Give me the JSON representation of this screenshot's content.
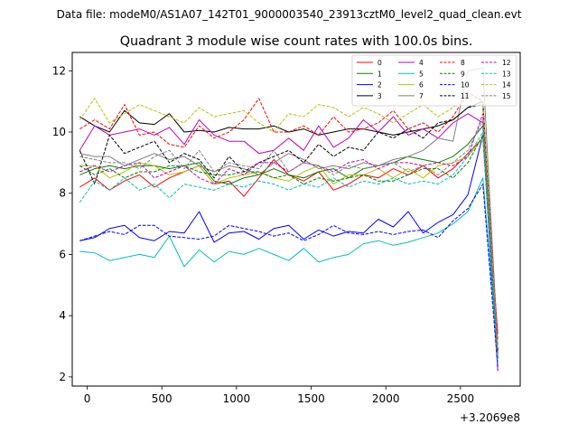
{
  "figure": {
    "suptitle": "Data file: modeM0/AS1A07_142T01_9000003540_23913cztM0_level2_quad_clean.evt"
  },
  "chart_data": {
    "type": "line",
    "title": "Quadrant 3 module wise count rates with 100.0s bins.",
    "xlabel": "",
    "ylabel": "",
    "x_offset_label": "+3.2069e8",
    "x_offset": 320690000,
    "xlim": [
      -100,
      2900
    ],
    "ylim": [
      1.7,
      12.6
    ],
    "xticks": [
      0,
      500,
      1000,
      1500,
      2000,
      2500
    ],
    "yticks": [
      2,
      4,
      6,
      8,
      10,
      12
    ],
    "grid": false,
    "legend_placement": "top-right",
    "legend_columns": 4,
    "x": [
      -50,
      50,
      150,
      250,
      350,
      450,
      550,
      650,
      750,
      850,
      950,
      1050,
      1150,
      1250,
      1350,
      1450,
      1550,
      1650,
      1750,
      1850,
      1950,
      2050,
      2150,
      2250,
      2350,
      2450,
      2550,
      2650,
      2750
    ],
    "series": [
      {
        "name": "0",
        "color": "#ff0000",
        "dash": "solid",
        "values": [
          8.2,
          8.5,
          8.1,
          8.4,
          8.6,
          8.2,
          8.5,
          8.7,
          8.9,
          8.3,
          8.4,
          7.9,
          8.5,
          9.1,
          8.6,
          8.4,
          8.7,
          8.1,
          8.3,
          8.6,
          8.5,
          8.8,
          8.6,
          8.9,
          8.5,
          8.8,
          9.3,
          9.8,
          3.4
        ]
      },
      {
        "name": "1",
        "color": "#008000",
        "dash": "solid",
        "values": [
          8.6,
          8.8,
          8.9,
          8.8,
          8.9,
          8.9,
          8.8,
          8.9,
          9.0,
          8.4,
          8.3,
          8.5,
          8.6,
          8.8,
          8.6,
          8.5,
          8.7,
          8.8,
          8.5,
          8.8,
          8.9,
          9.0,
          9.2,
          9.1,
          9.0,
          9.2,
          9.6,
          10.2,
          2.9
        ]
      },
      {
        "name": "2",
        "color": "#0000ff",
        "dash": "solid",
        "values": [
          6.45,
          6.55,
          6.85,
          6.95,
          6.55,
          6.45,
          6.75,
          6.7,
          7.4,
          6.4,
          6.7,
          6.75,
          6.5,
          6.85,
          6.95,
          6.5,
          6.8,
          6.6,
          6.75,
          6.7,
          7.15,
          6.9,
          7.4,
          6.7,
          7.05,
          7.3,
          7.95,
          9.9,
          2.2
        ]
      },
      {
        "name": "3",
        "color": "#000000",
        "dash": "solid",
        "values": [
          10.5,
          10.2,
          10.0,
          10.7,
          10.3,
          10.25,
          10.6,
          10.0,
          10.05,
          10.0,
          10.15,
          10.1,
          10.1,
          10.2,
          10.0,
          10.1,
          9.9,
          10.0,
          10.1,
          10.1,
          10.0,
          9.9,
          10.0,
          10.1,
          10.2,
          10.4,
          10.8,
          11.0,
          2.6
        ]
      },
      {
        "name": "4",
        "color": "#c000c0",
        "dash": "solid",
        "values": [
          9.4,
          10.2,
          9.9,
          10.0,
          10.1,
          9.9,
          10.15,
          9.6,
          10.4,
          9.9,
          9.7,
          9.7,
          9.3,
          9.4,
          9.8,
          9.4,
          10.2,
          9.5,
          9.8,
          10.4,
          10.0,
          10.5,
          9.9,
          10.1,
          9.8,
          10.3,
          10.6,
          10.3,
          2.2
        ]
      },
      {
        "name": "5",
        "color": "#00bfbf",
        "dash": "solid",
        "values": [
          6.1,
          6.05,
          5.8,
          5.9,
          6.0,
          5.9,
          6.6,
          5.6,
          6.15,
          5.75,
          6.1,
          6.0,
          6.2,
          6.0,
          5.8,
          6.2,
          5.75,
          5.9,
          6.0,
          6.35,
          6.45,
          6.3,
          6.4,
          6.55,
          6.7,
          7.0,
          7.4,
          8.5,
          2.6
        ]
      },
      {
        "name": "6",
        "color": "#bfbf00",
        "dash": "solid",
        "values": [
          8.9,
          8.9,
          8.5,
          8.7,
          9.0,
          8.9,
          8.6,
          8.7,
          8.9,
          8.3,
          8.5,
          8.6,
          8.7,
          8.5,
          8.4,
          8.7,
          8.9,
          8.3,
          8.6,
          8.6,
          8.8,
          8.5,
          8.8,
          8.5,
          8.9,
          9.0,
          9.2,
          9.8,
          2.8
        ]
      },
      {
        "name": "7",
        "color": "#808080",
        "dash": "solid",
        "values": [
          9.3,
          9.2,
          9.2,
          8.9,
          9.1,
          9.3,
          9.1,
          9.2,
          8.9,
          8.7,
          8.9,
          8.8,
          8.6,
          9.0,
          9.3,
          9.1,
          8.8,
          8.9,
          8.8,
          9.0,
          8.9,
          9.1,
          9.2,
          9.4,
          9.8,
          9.7,
          12.0,
          12.1,
          2.9
        ]
      },
      {
        "name": "8",
        "color": "#ff0000",
        "dash": "dashed",
        "values": [
          10.1,
          10.4,
          10.1,
          10.9,
          9.9,
          10.0,
          9.6,
          9.5,
          10.2,
          9.8,
          10.0,
          10.4,
          11.1,
          10.0,
          10.0,
          10.2,
          9.9,
          10.5,
          10.0,
          10.1,
          10.3,
          10.7,
          10.1,
          10.3,
          10.0,
          10.5,
          11.3,
          11.0,
          3.2
        ]
      },
      {
        "name": "9",
        "color": "#008000",
        "dash": "dashed",
        "values": [
          8.9,
          8.6,
          8.8,
          8.5,
          8.7,
          8.7,
          8.9,
          8.9,
          8.7,
          8.6,
          8.6,
          8.7,
          8.7,
          8.5,
          8.6,
          8.3,
          8.5,
          8.4,
          8.5,
          8.6,
          8.4,
          8.4,
          8.6,
          8.8,
          8.8,
          8.5,
          9.0,
          9.9,
          2.6
        ]
      },
      {
        "name": "10",
        "color": "#0000ff",
        "dash": "dashed",
        "values": [
          6.45,
          6.6,
          6.75,
          6.65,
          6.95,
          6.95,
          6.6,
          6.55,
          6.5,
          6.6,
          6.95,
          6.85,
          6.75,
          6.6,
          6.7,
          6.45,
          6.65,
          6.95,
          6.7,
          6.65,
          6.75,
          6.65,
          6.75,
          6.8,
          6.55,
          7.1,
          7.5,
          8.3,
          2.3
        ]
      },
      {
        "name": "11",
        "color": "#000000",
        "dash": "dashed",
        "values": [
          9.4,
          8.3,
          9.9,
          9.3,
          9.5,
          9.7,
          9.0,
          9.3,
          9.1,
          8.5,
          9.2,
          8.7,
          9.0,
          9.2,
          9.4,
          9.0,
          9.6,
          9.2,
          9.5,
          9.4,
          10.0,
          9.8,
          10.1,
          9.8,
          10.3,
          10.4,
          10.8,
          10.9,
          2.8
        ]
      },
      {
        "name": "12",
        "color": "#c000c0",
        "dash": "dashed",
        "values": [
          8.7,
          8.9,
          8.7,
          8.9,
          9.0,
          8.5,
          8.7,
          8.9,
          8.5,
          8.3,
          8.8,
          8.6,
          9.0,
          9.0,
          8.7,
          9.0,
          8.9,
          8.7,
          9.0,
          9.1,
          8.8,
          9.0,
          9.0,
          8.9,
          9.0,
          8.9,
          9.2,
          10.6,
          2.5
        ]
      },
      {
        "name": "13",
        "color": "#00bfbf",
        "dash": "dashed",
        "values": [
          7.7,
          8.4,
          8.1,
          8.5,
          8.1,
          8.3,
          7.85,
          8.3,
          8.2,
          8.1,
          8.3,
          8.2,
          8.4,
          8.3,
          8.1,
          8.3,
          8.2,
          8.5,
          8.2,
          8.4,
          8.3,
          8.5,
          8.3,
          8.4,
          8.3,
          8.6,
          9.2,
          10.0,
          2.4
        ]
      },
      {
        "name": "14",
        "color": "#bfbf00",
        "dash": "dashed",
        "values": [
          10.4,
          11.1,
          10.3,
          10.6,
          10.9,
          10.7,
          10.5,
          10.3,
          10.8,
          10.5,
          10.6,
          10.7,
          10.3,
          10.0,
          10.6,
          10.5,
          10.9,
          10.8,
          10.5,
          10.8,
          10.6,
          10.3,
          10.6,
          10.9,
          10.5,
          10.8,
          11.2,
          11.0,
          2.9
        ]
      },
      {
        "name": "15",
        "color": "#808080",
        "dash": "dashed",
        "values": [
          9.2,
          9.1,
          9.0,
          9.0,
          8.8,
          9.2,
          9.4,
          8.8,
          9.4,
          8.7,
          9.0,
          8.9,
          8.8,
          9.4,
          8.7,
          9.0,
          8.9,
          8.6,
          8.9,
          8.8,
          8.9,
          9.0,
          8.7,
          8.9,
          8.6,
          9.0,
          9.4,
          10.4,
          3.0
        ]
      }
    ]
  }
}
